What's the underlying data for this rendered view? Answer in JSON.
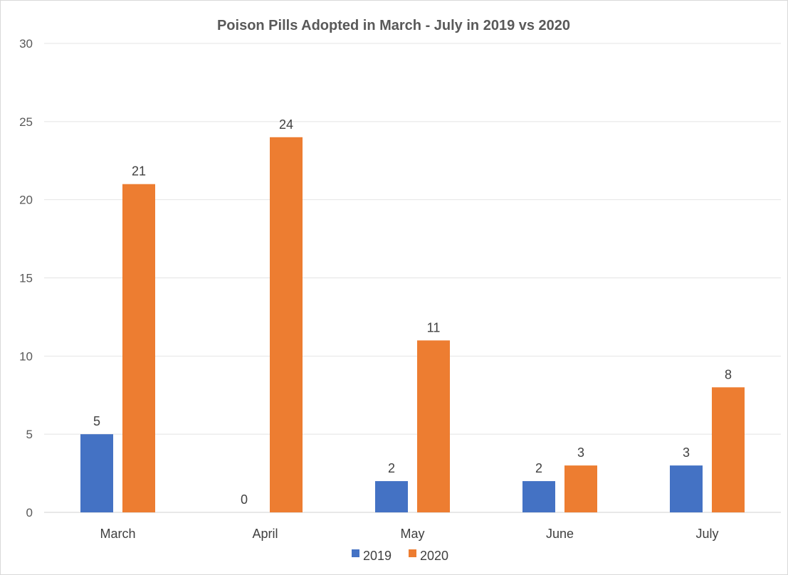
{
  "chart_data": {
    "type": "bar",
    "title": "Poison Pills Adopted in March - July in 2019 vs 2020",
    "xlabel": "",
    "ylabel": "",
    "categories": [
      "March",
      "April",
      "May",
      "June",
      "July"
    ],
    "series": [
      {
        "name": "2019",
        "values": [
          5,
          0,
          2,
          2,
          3
        ],
        "color": "#4472C4"
      },
      {
        "name": "2020",
        "values": [
          21,
          24,
          11,
          3,
          8
        ],
        "color": "#ED7D31"
      }
    ],
    "ylim": [
      0,
      30
    ],
    "yticks": [
      0,
      5,
      10,
      15,
      20,
      25,
      30
    ],
    "grid": true,
    "legend": "bottom",
    "data_labels": true
  }
}
